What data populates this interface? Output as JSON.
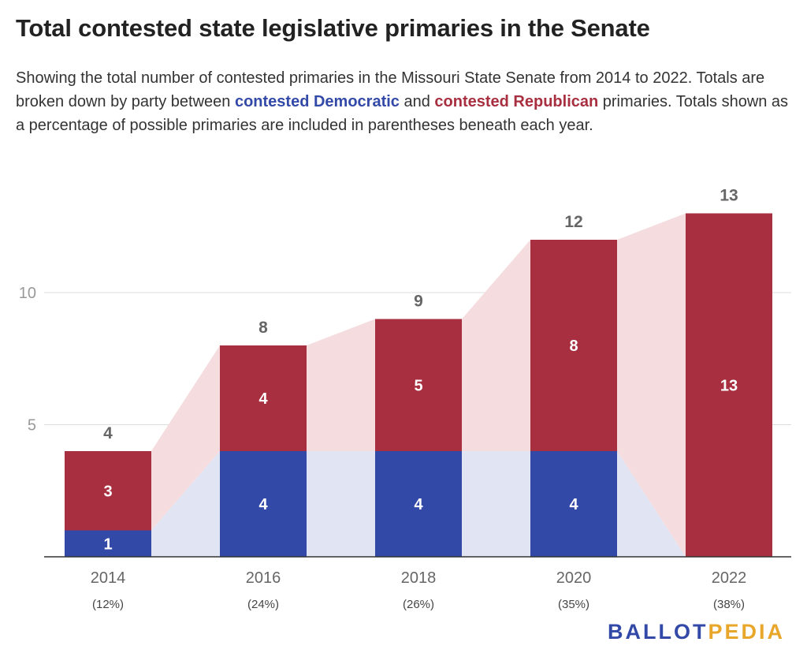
{
  "title": "Total contested state legislative primaries in the Senate",
  "subtitle": {
    "part1": "Showing the total number of contested primaries in the Missouri State Senate from 2014 to 2022. Totals are broken down by party between ",
    "dem": "contested Democratic",
    "part2": " and ",
    "rep": "contested Republican",
    "part3": " primaries. Totals shown as a percentage of possible primaries are included in parentheses beneath each year."
  },
  "logo": {
    "part1": "BALLOT",
    "part2": "PEDIA"
  },
  "colors": {
    "democratic": "#3349a8",
    "republican": "#a82f3f",
    "dem_area": "#e1e5f3",
    "rep_area": "#f5dcdf",
    "logo_ballot": "#3349a8",
    "logo_pedia": "#e8a72b"
  },
  "chart_data": {
    "type": "bar",
    "stacked": true,
    "categories": [
      "2014",
      "2016",
      "2018",
      "2020",
      "2022"
    ],
    "percent_labels": [
      "(12%)",
      "(24%)",
      "(26%)",
      "(35%)",
      "(38%)"
    ],
    "series": [
      {
        "name": "contested Democratic",
        "values": [
          1,
          4,
          4,
          4,
          0
        ]
      },
      {
        "name": "contested Republican",
        "values": [
          3,
          4,
          5,
          8,
          13
        ]
      }
    ],
    "totals": [
      4,
      8,
      9,
      12,
      13
    ],
    "y_ticks": [
      5,
      10
    ],
    "ylim": [
      0,
      14
    ],
    "grid": true
  }
}
